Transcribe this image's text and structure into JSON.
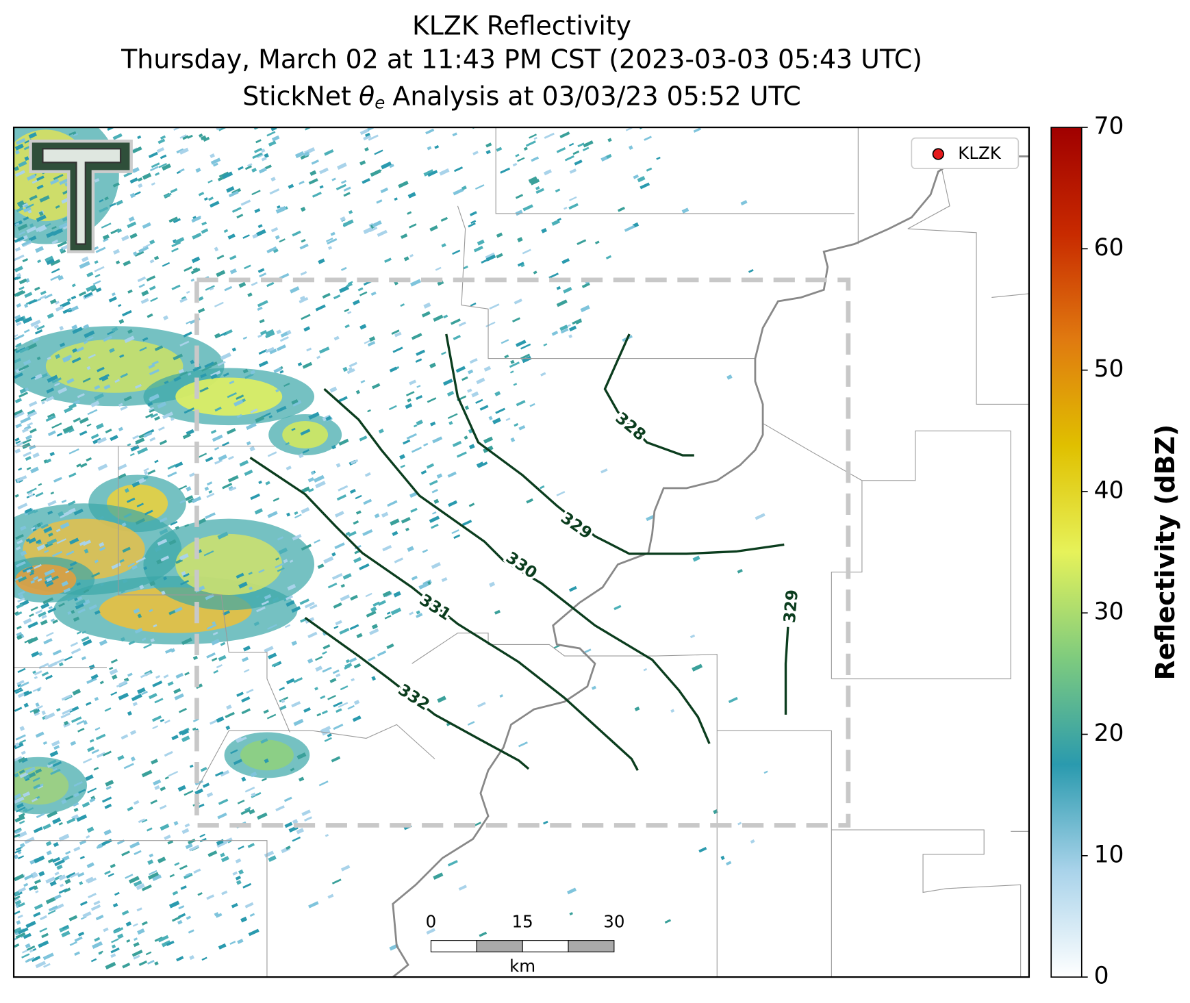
{
  "header": {
    "line1": "KLZK Reflectivity",
    "line2": "Thursday, March 02 at 11:43 PM CST (2023-03-03 05:43 UTC)",
    "line3_parts": [
      "StickNet",
      "θ",
      "e",
      "Analysis at 03/03/23 05:52 UTC"
    ]
  },
  "legend": {
    "label": "KLZK",
    "marker_color": "#e41a1c"
  },
  "contours": [
    {
      "value": 328
    },
    {
      "value": 329
    },
    {
      "value": 330
    },
    {
      "value": 331
    },
    {
      "value": 332
    },
    {
      "value": 329
    }
  ],
  "contour_color": "#0b3d1e",
  "scale_bar": {
    "ticks": [
      0,
      15,
      30
    ],
    "unit": "km"
  },
  "colorbar": {
    "label": "Reflectivity (dBZ)",
    "range": [
      0,
      70
    ],
    "ticks": [
      0,
      10,
      20,
      30,
      40,
      50,
      60,
      70
    ],
    "colors": [
      "#ffffff",
      "#a9d3ea",
      "#2a9aae",
      "#7ecb7e",
      "#e6f25a",
      "#e0c000",
      "#e07a10",
      "#c82a00",
      "#a00000"
    ]
  }
}
